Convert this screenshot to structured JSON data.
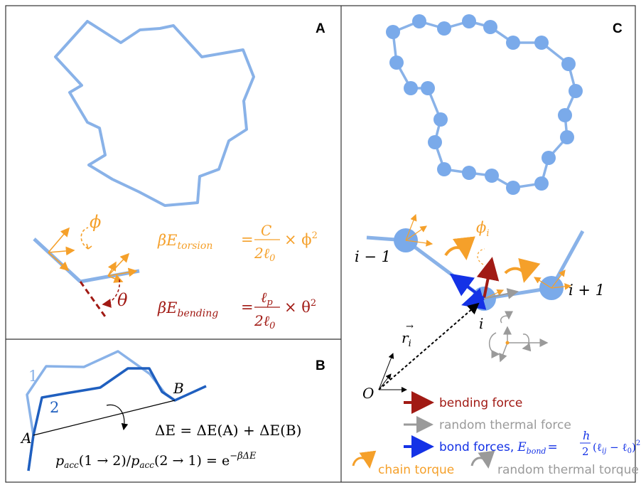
{
  "panels": {
    "a": {
      "label": "A",
      "phi": "ϕ",
      "theta": "θ",
      "torsion": {
        "lhs": "βE",
        "lhs_sub": "torsion",
        "num": "C",
        "den": "2ℓ",
        "den_sub": "0",
        "times": "× ϕ",
        "pow": "2"
      },
      "bending": {
        "lhs": "βE",
        "lhs_sub": "bending",
        "num": "ℓ",
        "num_sub": "p",
        "den": "2ℓ",
        "den_sub": "0",
        "times": "× θ",
        "pow": "2"
      }
    },
    "b": {
      "label": "B",
      "chain1": "1",
      "chain2": "2",
      "point_a": "A",
      "point_b": "B",
      "delta_e": "ΔE = ΔE(A) + ΔE(B)",
      "pacc": "p",
      "pacc_sub": "acc",
      "pacc_eq1": "(1 → 2)/",
      "pacc_eq2": "(2 → 1) = e",
      "pacc_exp": "−βΔE"
    },
    "c": {
      "label": "C",
      "i_minus_1": "i − 1",
      "i": "i",
      "i_plus_1": "i + 1",
      "phi_i": "ϕ",
      "phi_i_sub": "i",
      "r_i": "r",
      "r_i_sub": "i",
      "origin": "O",
      "legend": {
        "bending": "bending force",
        "thermal": "random thermal force",
        "bond": "bond forces,",
        "ebond": "E",
        "ebond_sub": "bond",
        "ebond_num": "h",
        "ebond_den": "2",
        "ebond_rhs": "(ℓ",
        "ebond_ij": "ij",
        "ebond_mid": " − ℓ",
        "ebond_zero": "0",
        "ebond_end": ")",
        "ebond_pow": "2",
        "chain_torque": "chain torque",
        "thermal_torque": "random thermal torque"
      }
    }
  },
  "colors": {
    "chain": "#89b2e8",
    "bead": "#7aaaea",
    "orange": "#f5a02a",
    "red": "#a11a14",
    "blue": "#1432e6",
    "gray": "#9a9a9a",
    "darkblue": "#1f5fbf"
  }
}
